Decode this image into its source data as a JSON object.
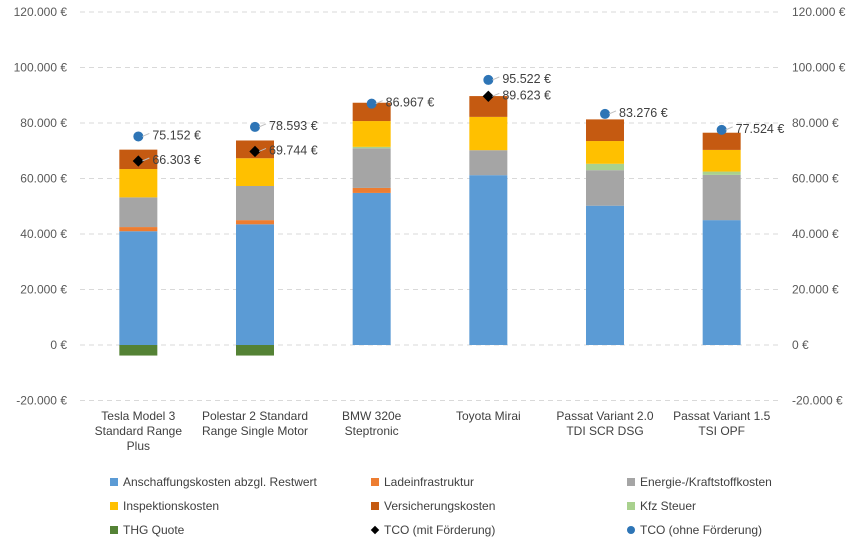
{
  "chart_data": {
    "type": "bar",
    "stacked": true,
    "title": "",
    "xlabel": "",
    "ylabel": "",
    "ylim": [
      -20000,
      120000
    ],
    "y_ticks": [
      -20000,
      0,
      20000,
      40000,
      60000,
      80000,
      100000,
      120000
    ],
    "y_tick_labels": [
      "-20.000 €",
      "0 €",
      "20.000 €",
      "40.000 €",
      "60.000 €",
      "80.000 €",
      "100.000 €",
      "120.000 €"
    ],
    "secondary_y_axis": true,
    "grid": "horizontal dashed",
    "legend_position": "bottom",
    "categories": [
      [
        "Tesla Model 3",
        "Standard Range",
        "Plus"
      ],
      [
        "Polestar 2 Standard",
        "Range Single Motor"
      ],
      [
        "BMW 320e",
        "Steptronic"
      ],
      [
        "Toyota Mirai"
      ],
      [
        "Passat Variant 2.0",
        "TDI SCR DSG"
      ],
      [
        "Passat Variant 1.5",
        "TSI OPF"
      ]
    ],
    "series": [
      {
        "name": "Anschaffungskosten abzgl. Restwert",
        "color": "#5B9BD5",
        "values": [
          41000,
          43500,
          54800,
          61200,
          50200,
          45000
        ]
      },
      {
        "name": "Ladeinfrastruktur",
        "color": "#ED7D31",
        "values": [
          1500,
          1500,
          1800,
          0,
          0,
          0
        ]
      },
      {
        "name": "Energie-/Kraftstoffkosten",
        "color": "#A5A5A5",
        "values": [
          10700,
          12300,
          14300,
          9000,
          12800,
          16300
        ]
      },
      {
        "name": "Kfz Steuer",
        "color": "#A9D18E",
        "values": [
          0,
          0,
          500,
          0,
          2300,
          1200
        ]
      },
      {
        "name": "Inspektionskosten",
        "color": "#FFC000",
        "values": [
          10200,
          10000,
          9300,
          12000,
          8200,
          7800
        ]
      },
      {
        "name": "Versicherungskosten",
        "color": "#C55A11",
        "values": [
          7000,
          6400,
          6600,
          7500,
          7800,
          6200
        ]
      },
      {
        "name": "THG Quote",
        "color": "#548235",
        "values": [
          -3800,
          -3800,
          0,
          0,
          0,
          0
        ]
      }
    ],
    "points": [
      {
        "name": "TCO (mit Förderung)",
        "marker": "diamond",
        "color": "#000000",
        "values": [
          66303,
          69744,
          null,
          89623,
          null,
          null
        ],
        "labels": [
          "66.303 €",
          "69.744 €",
          "",
          "89.623 €",
          "",
          ""
        ]
      },
      {
        "name": "TCO (ohne Förderung)",
        "marker": "circle",
        "color": "#2E75B6",
        "values": [
          75152,
          78593,
          86967,
          95522,
          83276,
          77524
        ],
        "labels": [
          "75.152 €",
          "78.593 €",
          "86.967 €",
          "95.522 €",
          "83.276 €",
          "77.524 €"
        ]
      }
    ],
    "legend": [
      [
        "Anschaffungskosten abzgl. Restwert",
        "Ladeinfrastruktur",
        "Energie-/Kraftstoffkosten"
      ],
      [
        "Inspektionskosten",
        "Versicherungskosten",
        "Kfz Steuer"
      ],
      [
        "THG Quote",
        "TCO (mit Förderung)",
        "TCO (ohne Förderung)"
      ]
    ]
  }
}
